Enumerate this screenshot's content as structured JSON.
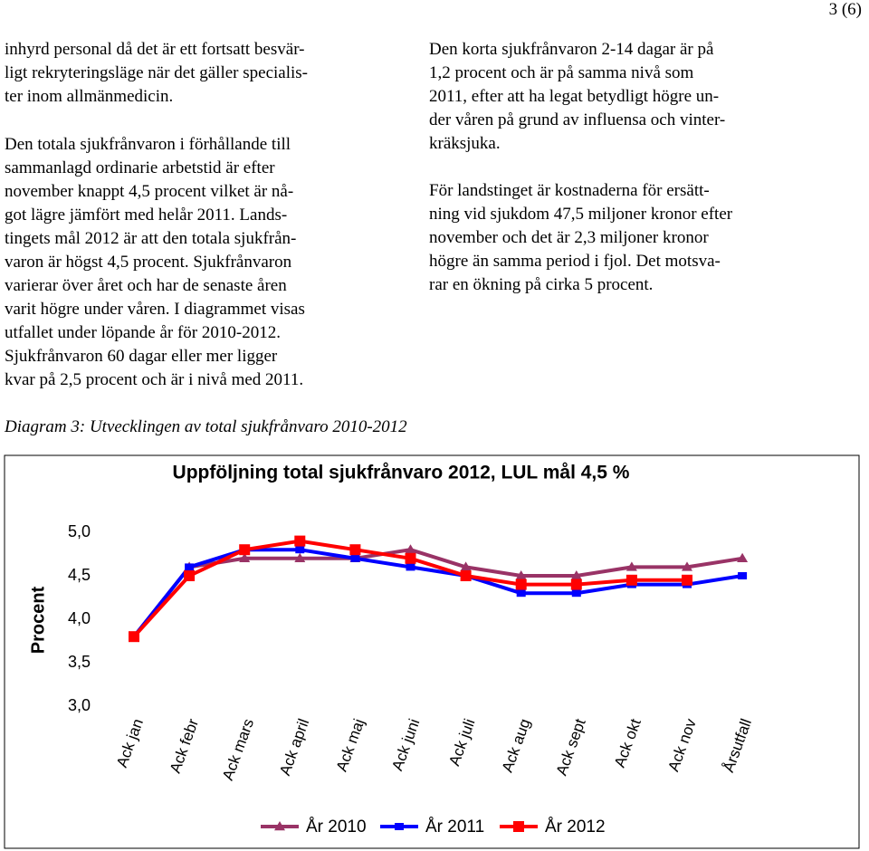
{
  "header": {
    "page": "3 (6)"
  },
  "left_column": {
    "paragraphs": [
      [
        "inhyrd personal då det är ett fortsatt besvär-",
        "ligt rekryteringsläge när det gäller specialis-",
        "ter inom allmänmedicin."
      ],
      [
        "Den totala sjukfrånvaron i förhållande till",
        "sammanlagd ordinarie arbetstid är efter",
        "november knappt 4,5 procent vilket är nå-",
        "got lägre jämfört med helår 2011. Lands-",
        "tingets mål 2012 är att den totala sjukfrån-",
        "varon är högst 4,5 procent. Sjukfrånvaron",
        "varierar över året och har de senaste åren",
        "varit högre under våren. I diagrammet visas",
        "utfallet under löpande år för 2010-2012.",
        "Sjukfrånvaron 60 dagar eller mer ligger",
        "kvar på 2,5 procent och är i nivå med 2011."
      ]
    ]
  },
  "right_column": {
    "paragraphs": [
      [
        "Den korta sjukfrånvaron 2-14 dagar är på",
        "1,2 procent och är på samma nivå som",
        "2011, efter att ha legat betydligt högre un-",
        "der våren på grund av influensa och vinter-",
        "kräksjuka."
      ],
      [
        "För landstinget är kostnaderna för ersätt-",
        "ning vid sjukdom 47,5 miljoner kronor efter",
        "november och det är 2,3 miljoner kronor",
        "högre än samma period i fjol. Det motsva-",
        "rar en ökning på cirka 5 procent."
      ]
    ]
  },
  "caption": "Diagram 3: Utvecklingen av total sjukfrånvaro 2010-2012",
  "chart_data": {
    "type": "line",
    "title": "Uppföljning total sjukfrånvaro 2012, LUL mål 4,5 %",
    "y_label": "Procent",
    "categories": [
      "Ack jan",
      "Ack febr",
      "Ack mars",
      "Ack april",
      "Ack maj",
      "Ack juni",
      "Ack juli",
      "Ack aug",
      "Ack sept",
      "Ack okt",
      "Ack nov",
      "Årsutfall"
    ],
    "series": [
      {
        "name": "År 2010",
        "color": "#993366",
        "marker": "triangle",
        "values": [
          3.8,
          4.6,
          4.7,
          4.7,
          4.7,
          4.8,
          4.6,
          4.5,
          4.5,
          4.6,
          4.6,
          4.7
        ]
      },
      {
        "name": "År 2011",
        "color": "#0000ff",
        "marker": "diamond",
        "values": [
          3.8,
          4.6,
          4.8,
          4.8,
          4.7,
          4.6,
          4.5,
          4.3,
          4.3,
          4.4,
          4.4,
          4.5
        ]
      },
      {
        "name": "År 2012",
        "color": "#ff0000",
        "marker": "square",
        "values": [
          3.8,
          4.5,
          4.8,
          4.9,
          4.8,
          4.7,
          4.5,
          4.4,
          4.4,
          4.45,
          4.45,
          null
        ]
      }
    ],
    "ylim": [
      3.0,
      5.0
    ],
    "yticks": [
      {
        "value": 3.0,
        "label": "3,0"
      },
      {
        "value": 3.5,
        "label": "3,5"
      },
      {
        "value": 4.0,
        "label": "4,0"
      },
      {
        "value": 4.5,
        "label": "4,5"
      },
      {
        "value": 5.0,
        "label": "5,0"
      }
    ],
    "grid": false,
    "legend": "bottom"
  }
}
